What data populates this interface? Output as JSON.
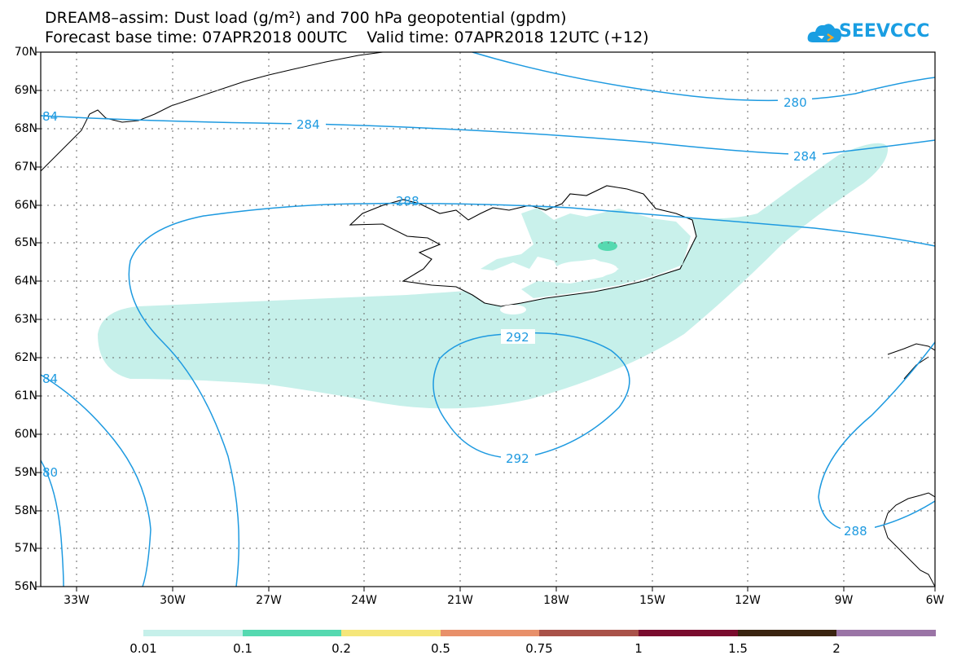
{
  "header": {
    "title_line1": "DREAM8–assim: Dust load (g/m²) and 700 hPa geopotential (gpdm)",
    "title_line2": "Forecast base time: 07APR2018 00UTC    Valid time: 07APR2018 12UTC (+12)",
    "logo_text": "SEEVCCC",
    "logo_icon": "cloud-icon"
  },
  "map": {
    "lat_labels": [
      "70N",
      "69N",
      "68N",
      "67N",
      "66N",
      "65N",
      "64N",
      "63N",
      "62N",
      "61N",
      "60N",
      "59N",
      "58N",
      "57N",
      "56N"
    ],
    "lon_labels": [
      "33W",
      "30W",
      "27W",
      "24W",
      "21W",
      "18W",
      "15W",
      "12W",
      "9W",
      "6W"
    ],
    "contour_labels": [
      "280",
      "284",
      "284",
      "288",
      "292",
      "292",
      "288",
      "84",
      "84",
      "80"
    ],
    "contour_color": "#1e9ae0",
    "dust_color_low": "#c6f0ea",
    "dust_color_mid": "#55d9b0"
  },
  "legend": {
    "colors": [
      "#c6f0ea",
      "#55d9b0",
      "#f5e67a",
      "#e8906a",
      "#a95249",
      "#7a0c2e",
      "#3a2410",
      "#9a74a6"
    ],
    "labels": [
      "0.01",
      "0.1",
      "0.2",
      "0.5",
      "0.75",
      "1",
      "1.5",
      "2"
    ]
  }
}
